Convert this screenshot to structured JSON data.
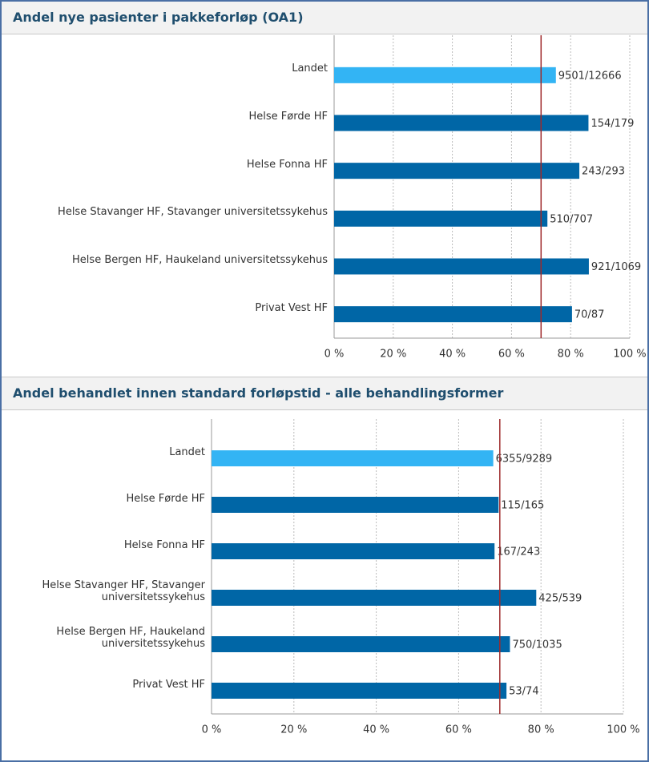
{
  "chart_data": [
    {
      "type": "bar",
      "orientation": "horizontal",
      "title": "Andel nye pasienter i pakkeforløp (OA1)",
      "categories": [
        "Landet",
        "Helse Førde HF",
        "Helse Fonna HF",
        "Helse Stavanger HF, Stavanger universitetssykehus",
        "Helse Bergen HF, Haukeland universitetssykehus",
        "Privat Vest HF"
      ],
      "values": [
        75.01,
        86.03,
        82.94,
        72.14,
        86.16,
        80.46
      ],
      "value_labels": [
        "9501/12666",
        "154/179",
        "243/293",
        "510/707",
        "921/1069",
        "70/87"
      ],
      "colors": [
        "#33b4f4",
        "#0066a6",
        "#0066a6",
        "#0066a6",
        "#0066a6",
        "#0066a6"
      ],
      "xlim": [
        0,
        100
      ],
      "xticks": [
        {
          "value": 0,
          "label": "0 %"
        },
        {
          "value": 20,
          "label": "20 %"
        },
        {
          "value": 40,
          "label": "40 %"
        },
        {
          "value": 60,
          "label": "60 %"
        },
        {
          "value": 80,
          "label": "80 %"
        },
        {
          "value": 100,
          "label": "100 %"
        }
      ],
      "grid": true,
      "target": 70,
      "target_color": "#9e2a2b"
    },
    {
      "type": "bar",
      "orientation": "horizontal",
      "title": "Andel behandlet innen standard forløpstid - alle behandlingsformer",
      "categories": [
        "Landet",
        "Helse Førde HF",
        "Helse Fonna HF",
        "Helse Stavanger HF, Stavanger universitetssykehus",
        "Helse Bergen HF, Haukeland universitetssykehus",
        "Privat Vest HF"
      ],
      "values": [
        68.41,
        69.7,
        68.72,
        78.85,
        72.46,
        71.62
      ],
      "value_labels": [
        "6355/9289",
        "115/165",
        "167/243",
        "425/539",
        "750/1035",
        "53/74"
      ],
      "colors": [
        "#33b4f4",
        "#0066a6",
        "#0066a6",
        "#0066a6",
        "#0066a6",
        "#0066a6"
      ],
      "xlim": [
        0,
        100
      ],
      "xticks": [
        {
          "value": 0,
          "label": "0 %"
        },
        {
          "value": 20,
          "label": "20 %"
        },
        {
          "value": 40,
          "label": "40 %"
        },
        {
          "value": 60,
          "label": "60 %"
        },
        {
          "value": 80,
          "label": "80 %"
        },
        {
          "value": 100,
          "label": "100 %"
        }
      ],
      "grid": true,
      "target": 70,
      "target_color": "#9e2a2b"
    }
  ]
}
